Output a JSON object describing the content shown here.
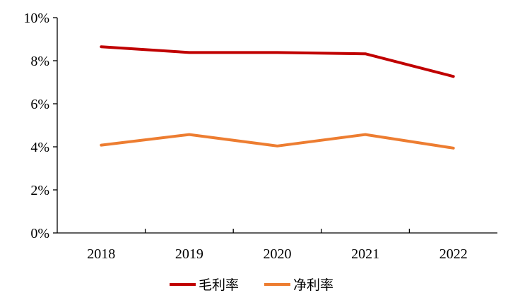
{
  "chart_data": {
    "type": "line",
    "categories": [
      "2018",
      "2019",
      "2020",
      "2021",
      "2022"
    ],
    "series": [
      {
        "name": "毛利率",
        "color": "#C00000",
        "values": [
          8.65,
          8.38,
          8.38,
          8.32,
          7.27
        ]
      },
      {
        "name": "净利率",
        "color": "#ED7D31",
        "values": [
          4.08,
          4.57,
          4.04,
          4.57,
          3.94
        ]
      }
    ],
    "ylim": [
      0,
      10
    ],
    "yticks": [
      0,
      2,
      4,
      6,
      8,
      10
    ],
    "ytick_labels": [
      "0%",
      "2%",
      "4%",
      "6%",
      "8%",
      "10%"
    ],
    "title": "",
    "xlabel": "",
    "ylabel": "",
    "grid": false,
    "legend_position": "bottom-center"
  }
}
